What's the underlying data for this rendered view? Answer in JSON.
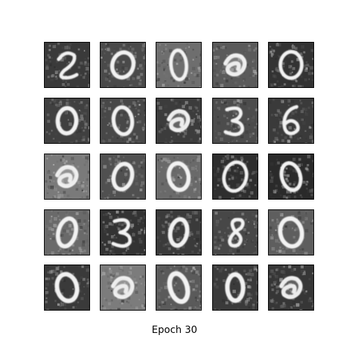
{
  "caption": "Epoch 30",
  "grid": {
    "rows": 5,
    "cols": 5,
    "colormap": "gray",
    "samples": [
      {
        "digit": "2",
        "background": "#3a3a3a"
      },
      {
        "digit": "0",
        "background": "#4a4a4a"
      },
      {
        "digit": "0",
        "background": "#6e6e6e"
      },
      {
        "digit": "blob",
        "background": "#5a5a5a"
      },
      {
        "digit": "0",
        "background": "#333333"
      },
      {
        "digit": "0",
        "background": "#404040"
      },
      {
        "digit": "0",
        "background": "#484848"
      },
      {
        "digit": "blob",
        "background": "#3c3c3c"
      },
      {
        "digit": "3",
        "background": "#4c4c4c"
      },
      {
        "digit": "6",
        "background": "#3a3a3a"
      },
      {
        "digit": "blob",
        "background": "#7a7a7a"
      },
      {
        "digit": "0",
        "background": "#505050"
      },
      {
        "digit": "0",
        "background": "#6a6a6a"
      },
      {
        "digit": "0",
        "background": "#2e2e2e"
      },
      {
        "digit": "0",
        "background": "#2a2a2a"
      },
      {
        "digit": "0",
        "background": "#6a6a6a"
      },
      {
        "digit": "3",
        "background": "#333333"
      },
      {
        "digit": "0",
        "background": "#3a3a3a"
      },
      {
        "digit": "8",
        "background": "#474747"
      },
      {
        "digit": "0",
        "background": "#5e5e5e"
      },
      {
        "digit": "0",
        "background": "#3a3a3a"
      },
      {
        "digit": "blob",
        "background": "#7c7c7c"
      },
      {
        "digit": "0",
        "background": "#5a5a5a"
      },
      {
        "digit": "0",
        "background": "#3a3a3a"
      },
      {
        "digit": "blob",
        "background": "#363636"
      }
    ]
  }
}
